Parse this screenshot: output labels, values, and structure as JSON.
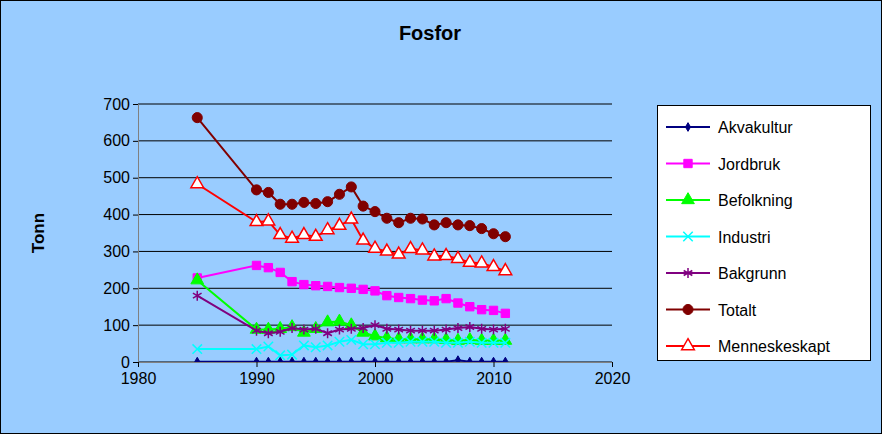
{
  "chart_data": {
    "type": "line",
    "title": "Fosfor",
    "y_label": "Tonn",
    "x": [
      1985,
      1990,
      1991,
      1992,
      1993,
      1994,
      1995,
      1996,
      1997,
      1998,
      1999,
      2000,
      2001,
      2002,
      2003,
      2004,
      2005,
      2006,
      2007,
      2008,
      2009,
      2010,
      2011
    ],
    "xlim": [
      1980,
      2020
    ],
    "xticks": [
      1980,
      1990,
      2000,
      2010,
      2020
    ],
    "ylim": [
      0,
      700
    ],
    "yticks": [
      0,
      100,
      200,
      300,
      400,
      500,
      600,
      700
    ],
    "grid": true,
    "legend": "right",
    "series": [
      {
        "name": "Akvakultur",
        "color": "#000080",
        "marker": "diamond",
        "values": [
          1,
          1,
          1,
          1,
          1,
          1,
          1,
          1,
          1,
          1,
          1,
          1,
          1,
          1,
          1,
          1,
          1,
          1,
          5,
          1,
          1,
          1,
          1
        ]
      },
      {
        "name": "Jordbruk",
        "color": "#ff00ff",
        "marker": "square",
        "values": [
          228,
          262,
          256,
          243,
          218,
          210,
          207,
          205,
          202,
          200,
          197,
          193,
          180,
          175,
          172,
          168,
          166,
          172,
          160,
          150,
          142,
          140,
          132
        ]
      },
      {
        "name": "Befolkning",
        "color": "#00ff00",
        "marker": "triangle",
        "values": [
          222,
          88,
          88,
          90,
          95,
          80,
          90,
          108,
          110,
          100,
          80,
          70,
          65,
          62,
          62,
          62,
          62,
          60,
          58,
          60,
          58,
          58,
          58
        ]
      },
      {
        "name": "Industri",
        "color": "#00ffff",
        "marker": "x",
        "values": [
          35,
          35,
          42,
          18,
          20,
          45,
          40,
          45,
          55,
          60,
          48,
          48,
          52,
          52,
          55,
          55,
          55,
          52,
          52,
          55,
          52,
          52,
          52
        ]
      },
      {
        "name": "Bakgrunn",
        "color": "#800080",
        "marker": "star",
        "values": [
          180,
          85,
          78,
          82,
          92,
          88,
          90,
          78,
          88,
          90,
          92,
          100,
          90,
          88,
          85,
          85,
          85,
          88,
          92,
          95,
          90,
          88,
          90
        ]
      },
      {
        "name": "Totalt",
        "color": "#800000",
        "marker": "circle",
        "values": [
          663,
          467,
          460,
          428,
          428,
          433,
          430,
          435,
          455,
          475,
          423,
          408,
          390,
          378,
          390,
          388,
          372,
          378,
          372,
          370,
          362,
          348,
          340
        ]
      },
      {
        "name": "Menneskeskapt",
        "color": "#ff0000",
        "marker": "triangle-open",
        "values": [
          483,
          380,
          382,
          345,
          335,
          345,
          340,
          358,
          370,
          387,
          330,
          308,
          300,
          292,
          307,
          303,
          287,
          288,
          280,
          270,
          268,
          258,
          247
        ]
      }
    ]
  }
}
